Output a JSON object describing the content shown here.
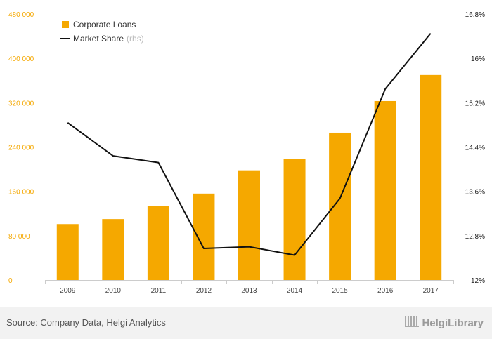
{
  "chart_data": {
    "type": "bar",
    "categories": [
      "2009",
      "2010",
      "2011",
      "2012",
      "2013",
      "2014",
      "2015",
      "2016",
      "2017"
    ],
    "series": [
      {
        "name": "Corporate Loans",
        "type": "bar",
        "axis": "left",
        "color": "#f5a800",
        "values": [
          101000,
          110000,
          133000,
          156000,
          198000,
          218000,
          266000,
          323000,
          370000
        ]
      },
      {
        "name": "Market Share",
        "name_suffix": "(rhs)",
        "type": "line",
        "axis": "right",
        "color": "#111111",
        "values": [
          14.84,
          14.24,
          14.12,
          12.57,
          12.6,
          12.45,
          13.47,
          15.45,
          16.45
        ]
      }
    ],
    "left_axis": {
      "min": 0,
      "max": 480000,
      "ticks": [
        0,
        80000,
        160000,
        240000,
        320000,
        400000,
        480000
      ],
      "tick_labels": [
        "0",
        "80 000",
        "160 000",
        "240 000",
        "320 000",
        "400 000",
        "480 000"
      ]
    },
    "right_axis": {
      "min": 12,
      "max": 16.8,
      "ticks": [
        12,
        12.8,
        13.6,
        14.4,
        15.2,
        16,
        16.8
      ],
      "tick_labels": [
        "12%",
        "12.8%",
        "13.6%",
        "14.4%",
        "15.2%",
        "16%",
        "16.8%"
      ]
    },
    "title": "",
    "xlabel": "",
    "ylabel": "",
    "grid": false,
    "legend_position": "top-left"
  },
  "footer": {
    "source": "Source: Company Data, Helgi Analytics",
    "brand": "HelgiLibrary",
    "brand_icon": "library-logo-icon"
  }
}
